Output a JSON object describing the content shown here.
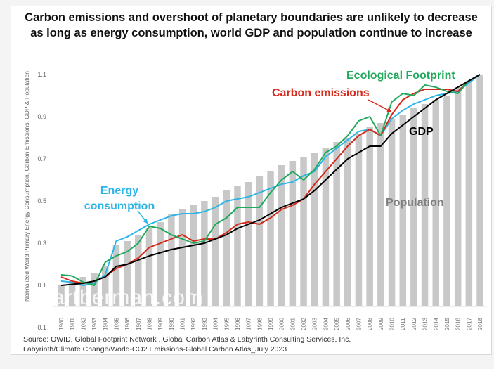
{
  "title": {
    "line1": "Carbon emissions and overshoot of planetary boundaries are unlikely to decrease",
    "line2": "as long as energy consumption, world GDP and population continue to increase"
  },
  "source": {
    "line1": "Source:  OWID, Global Footprint Network , Global Carbon Atlas & Labyrinth Consulting Services, Inc.",
    "line2": "Labyrinth/Climate Change/World-CO2 Emissions-Global Carbon Atlas_July 2023"
  },
  "watermark": "artberman.com",
  "chart_data": {
    "type": "bar+line",
    "title": "Carbon emissions and overshoot of planetary boundaries are unlikely to decrease as long as energy consumption, world GDP and population continue to increase",
    "xlabel": "",
    "ylabel": "Normalized World Primary Energy Consumption, Carbon Emissions, GDP & Population",
    "ylim": [
      -0.1,
      1.15
    ],
    "yticks": [
      -0.1,
      0.1,
      0.3,
      0.5,
      0.7,
      0.9,
      1.1
    ],
    "ytick_labels": [
      "-0.1",
      "0.1",
      "0.3",
      "0.5",
      "0.7",
      "0.9",
      "1.1"
    ],
    "grid": false,
    "categories": [
      "1980",
      "1981",
      "1982",
      "1983",
      "1984",
      "1985",
      "1986",
      "1987",
      "1988",
      "1989",
      "1990",
      "1991",
      "1992",
      "1993",
      "1994",
      "1995",
      "1996",
      "1997",
      "1998",
      "1999",
      "2000",
      "2001",
      "2002",
      "2003",
      "2004",
      "2005",
      "2006",
      "2007",
      "2008",
      "2009",
      "2010",
      "2011",
      "2012",
      "2013",
      "2014",
      "2015",
      "2016",
      "2017",
      "2018"
    ],
    "series": [
      {
        "name": "Population",
        "kind": "bar",
        "color": "#c8c8c8",
        "label_color": "#808080",
        "values": [
          0.1,
          0.12,
          0.14,
          0.16,
          0.19,
          0.29,
          0.31,
          0.34,
          0.37,
          0.4,
          0.44,
          0.46,
          0.48,
          0.5,
          0.52,
          0.55,
          0.57,
          0.59,
          0.62,
          0.64,
          0.67,
          0.69,
          0.71,
          0.73,
          0.75,
          0.78,
          0.8,
          0.82,
          0.85,
          0.87,
          0.89,
          0.91,
          0.94,
          0.96,
          0.98,
          1.0,
          1.04,
          1.07,
          1.1
        ]
      },
      {
        "name": "Energy consumption",
        "kind": "line",
        "color": "#2bb5e8",
        "values": [
          0.12,
          0.115,
          0.1,
          0.11,
          0.15,
          0.31,
          0.33,
          0.36,
          0.39,
          0.41,
          0.43,
          0.44,
          0.44,
          0.45,
          0.47,
          0.5,
          0.51,
          0.52,
          0.54,
          0.56,
          0.58,
          0.59,
          0.62,
          0.64,
          0.71,
          0.75,
          0.79,
          0.83,
          0.84,
          0.81,
          0.89,
          0.93,
          0.96,
          0.98,
          1.0,
          1.01,
          1.02,
          1.06,
          1.1
        ]
      },
      {
        "name": "Carbon emissions",
        "kind": "line",
        "color": "#d42a1b",
        "values": [
          0.14,
          0.12,
          0.11,
          0.12,
          0.14,
          0.18,
          0.2,
          0.23,
          0.28,
          0.3,
          0.32,
          0.34,
          0.31,
          0.32,
          0.32,
          0.35,
          0.39,
          0.4,
          0.39,
          0.42,
          0.46,
          0.48,
          0.51,
          0.58,
          0.64,
          0.7,
          0.76,
          0.81,
          0.84,
          0.81,
          0.91,
          0.98,
          1.01,
          1.03,
          1.03,
          1.03,
          1.02,
          1.07,
          1.1
        ]
      },
      {
        "name": "Ecological Footprint",
        "kind": "line",
        "color": "#1fa95a",
        "values": [
          0.15,
          0.145,
          0.115,
          0.1,
          0.21,
          0.24,
          0.26,
          0.3,
          0.38,
          0.37,
          0.34,
          0.32,
          0.3,
          0.31,
          0.39,
          0.42,
          0.47,
          0.47,
          0.47,
          0.54,
          0.6,
          0.64,
          0.6,
          0.65,
          0.73,
          0.76,
          0.81,
          0.88,
          0.9,
          0.81,
          0.97,
          1.01,
          1.0,
          1.05,
          1.04,
          1.02,
          1.01,
          1.07,
          1.1
        ]
      },
      {
        "name": "GDP",
        "kind": "line",
        "color": "#000000",
        "values": [
          0.1,
          0.105,
          0.11,
          0.12,
          0.14,
          0.19,
          0.2,
          0.22,
          0.24,
          0.255,
          0.27,
          0.28,
          0.29,
          0.3,
          0.32,
          0.34,
          0.37,
          0.39,
          0.41,
          0.44,
          0.47,
          0.49,
          0.51,
          0.55,
          0.6,
          0.65,
          0.7,
          0.73,
          0.76,
          0.76,
          0.82,
          0.86,
          0.9,
          0.94,
          0.98,
          1.01,
          1.04,
          1.07,
          1.1
        ]
      }
    ],
    "annotations": [
      {
        "text": "Energy",
        "series": "Energy consumption",
        "color": "#2bb5e8"
      },
      {
        "text": "consumption",
        "series": "Energy consumption",
        "color": "#2bb5e8"
      },
      {
        "text": "Carbon emissions",
        "series": "Carbon emissions",
        "color": "#d42a1b"
      },
      {
        "text": "Ecological Footprint",
        "series": "Ecological Footprint",
        "color": "#1fa95a"
      },
      {
        "text": "GDP",
        "series": "GDP",
        "color": "#000000"
      },
      {
        "text": "Population",
        "series": "Population",
        "color": "#808080"
      }
    ],
    "legend": "inline-annotations"
  }
}
